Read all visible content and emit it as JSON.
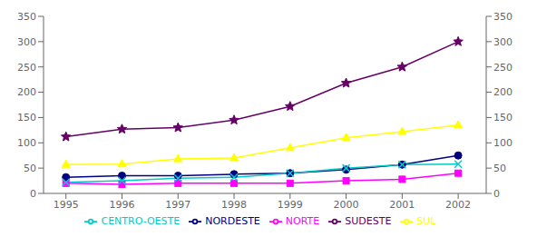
{
  "chart_data": {
    "type": "line",
    "x": [
      1995,
      1996,
      1997,
      1998,
      1999,
      2000,
      2001,
      2002
    ],
    "xlim": [
      1994.6,
      2002.5
    ],
    "xticks": [
      1995,
      1996,
      1997,
      1998,
      1999,
      2000,
      2001,
      2002
    ],
    "ylim": [
      0,
      350
    ],
    "yticks": [
      0,
      50,
      100,
      150,
      200,
      250,
      300,
      350
    ],
    "y2lim": [
      0,
      350
    ],
    "y2ticks": [
      0,
      50,
      100,
      150,
      200,
      250,
      300,
      350
    ],
    "grid": false,
    "legend": "bottom",
    "series": [
      {
        "name": "NORTE",
        "color": "#FF00FF",
        "marker": "square",
        "values": [
          20,
          18,
          20,
          20,
          20,
          25,
          28,
          40
        ]
      },
      {
        "name": "NORDESTE",
        "color": "#000080",
        "marker": "circle",
        "values": [
          32,
          35,
          35,
          38,
          40,
          47,
          57,
          75
        ]
      },
      {
        "name": "SUDESTE",
        "color": "#660066",
        "marker": "star",
        "values": [
          112,
          127,
          130,
          145,
          172,
          218,
          250,
          300
        ]
      },
      {
        "name": "SUL",
        "color": "#FFFF00",
        "marker": "triangle",
        "values": [
          57,
          58,
          68,
          70,
          90,
          110,
          122,
          135
        ]
      },
      {
        "name": "CENTRO-OESTE",
        "color": "#00CCCC",
        "marker": "x",
        "values": [
          22,
          25,
          30,
          32,
          40,
          50,
          57,
          58
        ]
      }
    ]
  }
}
